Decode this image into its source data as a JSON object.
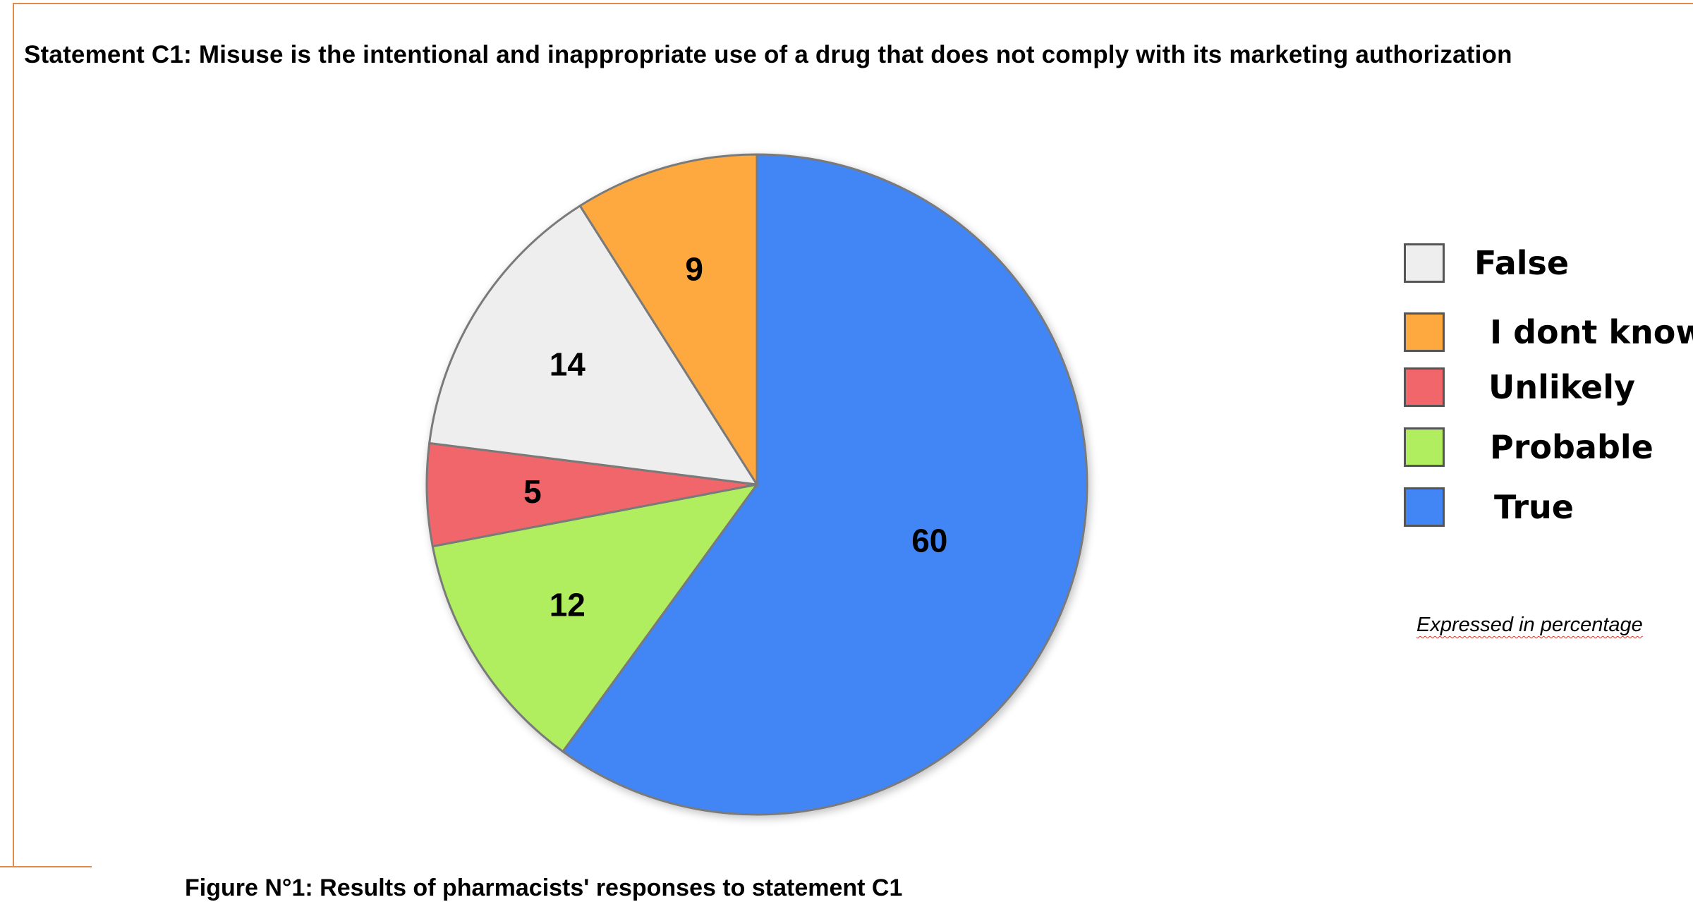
{
  "statement": "Statement C1: Misuse is the intentional and inappropriate use of a drug that does not comply with its marketing authorization",
  "caption": "Figure N°1: Results of pharmacists' responses to statement C1",
  "unit_note": "Expressed in percentage",
  "chart_data": {
    "type": "pie",
    "slices": [
      {
        "label": "True",
        "value": 60,
        "color": "#4285f4"
      },
      {
        "label": "Probable",
        "value": 12,
        "color": "#b0ed5f"
      },
      {
        "label": "Unlikely",
        "value": 5,
        "color": "#f0666a"
      },
      {
        "label": "False",
        "value": 14,
        "color": "#eeeeee"
      },
      {
        "label": "I dont know",
        "value": 9,
        "color": "#fda93f"
      }
    ],
    "legend": [
      {
        "label": "False",
        "color": "#eeeeee"
      },
      {
        "label": "I dont know",
        "color": "#fda93f"
      },
      {
        "label": "Unlikely",
        "color": "#f0666a"
      },
      {
        "label": "Probable",
        "color": "#b0ed5f"
      },
      {
        "label": "True",
        "color": "#4285f4"
      }
    ],
    "legend_position": "right",
    "start": "top",
    "direction": "clockwise"
  }
}
